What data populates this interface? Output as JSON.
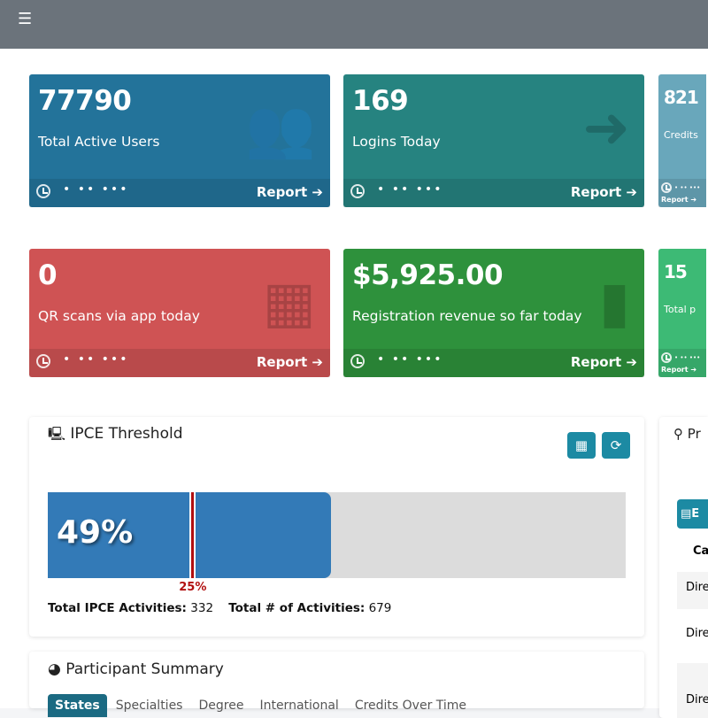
{
  "header": {
    "menu_icon": "hamburger-icon"
  },
  "cards": [
    {
      "value": "77790",
      "label": "Total Active Users",
      "report": "Report",
      "color": "#23739a",
      "icon": "users-icon"
    },
    {
      "value": "169",
      "label": "Logins Today",
      "report": "Report",
      "color": "#268380",
      "icon": "sign-in-icon"
    },
    {
      "value": "821",
      "label": "Credits",
      "report": "Report",
      "color": "#69a7bb",
      "icon": ""
    },
    {
      "value": "0",
      "label": "QR scans via app today",
      "report": "Report",
      "color": "#cf5354",
      "icon": "qrcode-icon"
    },
    {
      "value": "$5,925.00",
      "label": "Registration revenue so far today",
      "report": "Report",
      "color": "#2e913c",
      "icon": "bar-chart-icon"
    },
    {
      "value": "15",
      "label": "Total p",
      "report": "Report",
      "color": "#3dba75",
      "icon": ""
    }
  ],
  "ipce": {
    "title": "IPCE Threshold",
    "percent_label": "49%",
    "percent": 49,
    "threshold_label": "25%",
    "threshold": 25,
    "total_ipce_label": "Total IPCE Activities:",
    "total_ipce": "332",
    "total_label": "Total # of Activities:",
    "total": "679"
  },
  "participant": {
    "title": "Participant Summary",
    "tabs": [
      "States",
      "Specialties",
      "Degree",
      "International",
      "Credits Over Time"
    ]
  },
  "right_panel": {
    "title": "Pr",
    "export": "E",
    "col_header": "Ca",
    "rows": [
      "Dire",
      "Dire",
      "Dire"
    ]
  }
}
